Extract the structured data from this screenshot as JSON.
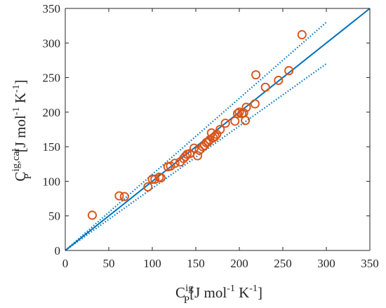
{
  "chart_data": {
    "type": "scatter",
    "xlabel": {
      "base": "C",
      "sup": "ig",
      "sub": "P",
      "bracket_open": "[J mol",
      "exp1": "-1",
      "mid": " K",
      "exp2": "-1",
      "bracket_close": "]"
    },
    "ylabel": {
      "base": "C",
      "sup": "ig,cal",
      "sub": "P",
      "bracket_open": "[J mol",
      "exp1": "-1",
      "mid": " K",
      "exp2": "-1",
      "bracket_close": "]"
    },
    "xlim": [
      0,
      350
    ],
    "ylim": [
      0,
      350
    ],
    "xticks": [
      "0",
      "50",
      "100",
      "150",
      "200",
      "250",
      "300",
      "350"
    ],
    "yticks": [
      "0",
      "50",
      "100",
      "150",
      "200",
      "250",
      "300",
      "350"
    ],
    "grid": false,
    "colors": {
      "marker": "#d95319",
      "line": "#0072bd",
      "axis": "#262626"
    },
    "reference_lines": [
      {
        "style": "solid",
        "x": [
          0,
          350
        ],
        "y": [
          0,
          350
        ]
      },
      {
        "style": "dotted",
        "x": [
          0,
          300
        ],
        "y": [
          0,
          330
        ]
      },
      {
        "style": "dotted",
        "x": [
          0,
          300
        ],
        "y": [
          0,
          270
        ]
      }
    ],
    "series": [
      {
        "marker": "open-circle",
        "points": [
          [
            31,
            51
          ],
          [
            62,
            79
          ],
          [
            68,
            78
          ],
          [
            95,
            92
          ],
          [
            100,
            103
          ],
          [
            103,
            103
          ],
          [
            108,
            106
          ],
          [
            110,
            105
          ],
          [
            118,
            121
          ],
          [
            121,
            122
          ],
          [
            126,
            126
          ],
          [
            132,
            128
          ],
          [
            136,
            133
          ],
          [
            138,
            136
          ],
          [
            140,
            139
          ],
          [
            143,
            140
          ],
          [
            148,
            148
          ],
          [
            152,
            137
          ],
          [
            154,
            145
          ],
          [
            158,
            150
          ],
          [
            160,
            152
          ],
          [
            162,
            156
          ],
          [
            164,
            157
          ],
          [
            166,
            160
          ],
          [
            168,
            170
          ],
          [
            170,
            163
          ],
          [
            172,
            165
          ],
          [
            174,
            168
          ],
          [
            178,
            175
          ],
          [
            184,
            184
          ],
          [
            195,
            187
          ],
          [
            198,
            198
          ],
          [
            200,
            200
          ],
          [
            203,
            198
          ],
          [
            205,
            199
          ],
          [
            207,
            188
          ],
          [
            208,
            207
          ],
          [
            218,
            212
          ],
          [
            219,
            254
          ],
          [
            230,
            236
          ],
          [
            245,
            246
          ],
          [
            257,
            260
          ],
          [
            272,
            312
          ]
        ]
      }
    ]
  }
}
